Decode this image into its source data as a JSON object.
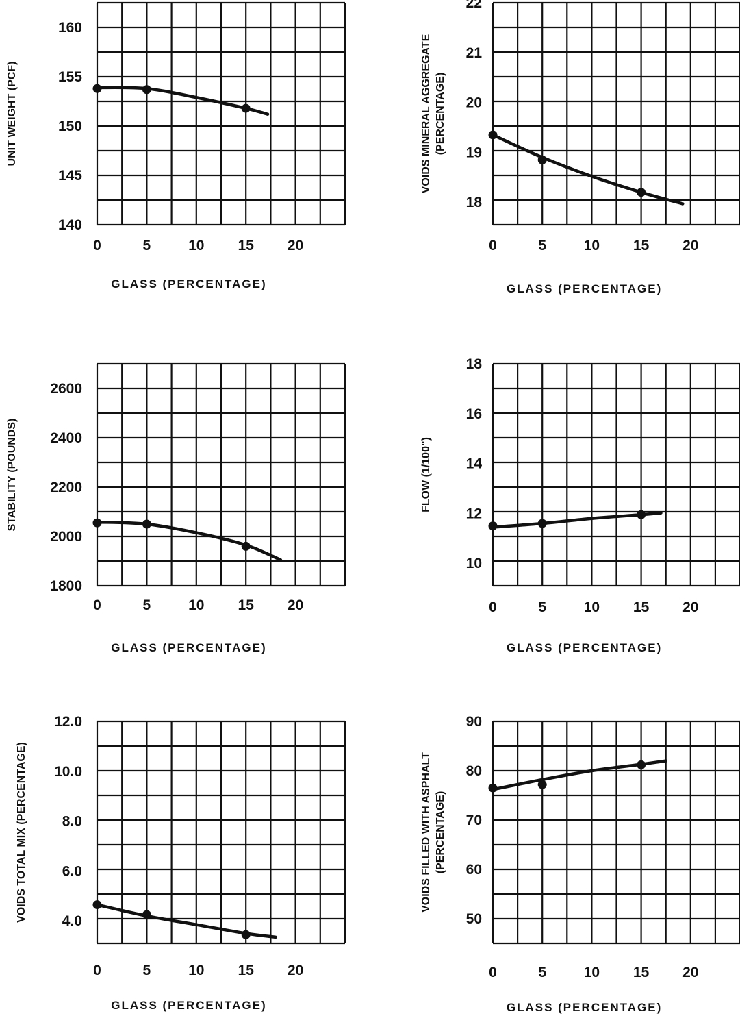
{
  "chart_data": [
    {
      "type": "line",
      "id": "unit-weight",
      "title": "",
      "xlabel": "GLASS (PERCENTAGE)",
      "ylabel": [
        "UNIT WEIGHT (PCF)"
      ],
      "xlim": [
        0,
        25
      ],
      "ylim": [
        140,
        162.5
      ],
      "x_ticks": [
        "0",
        "5",
        "10",
        "15",
        "20"
      ],
      "y_ticks": [
        "140",
        "145",
        "150",
        "155",
        "160"
      ],
      "grid": true,
      "series": [
        {
          "points": [
            {
              "x": 0,
              "y": 153.8
            },
            {
              "x": 5,
              "y": 153.7
            },
            {
              "x": 15,
              "y": 151.8
            }
          ],
          "curve": [
            {
              "x": 0,
              "y": 153.9
            },
            {
              "x": 5,
              "y": 153.8
            },
            {
              "x": 10,
              "y": 152.9
            },
            {
              "x": 15,
              "y": 151.8
            },
            {
              "x": 17.2,
              "y": 151.2
            }
          ]
        }
      ]
    },
    {
      "type": "line",
      "id": "vma",
      "title": "",
      "xlabel": "GLASS (PERCENTAGE)",
      "ylabel": [
        "VOIDS MINERAL AGGREGATE",
        "(PERCENTAGE)"
      ],
      "xlim": [
        0,
        25
      ],
      "ylim": [
        17.55,
        22
      ],
      "x_ticks": [
        "0",
        "5",
        "10",
        "15",
        "20"
      ],
      "y_ticks": [
        "18",
        "19",
        "20",
        "21",
        "22"
      ],
      "grid": true,
      "series": [
        {
          "points": [
            {
              "x": 0,
              "y": 19.35
            },
            {
              "x": 5,
              "y": 18.85
            },
            {
              "x": 15,
              "y": 18.2
            }
          ],
          "curve": [
            {
              "x": 0,
              "y": 19.35
            },
            {
              "x": 5,
              "y": 18.9
            },
            {
              "x": 10,
              "y": 18.52
            },
            {
              "x": 15,
              "y": 18.2
            },
            {
              "x": 19.2,
              "y": 17.97
            }
          ]
        }
      ]
    },
    {
      "type": "line",
      "id": "stability",
      "title": "",
      "xlabel": "GLASS (PERCENTAGE)",
      "ylabel": [
        "STABILITY (POUNDS)"
      ],
      "xlim": [
        0,
        25
      ],
      "ylim": [
        1800,
        2700
      ],
      "x_ticks": [
        "0",
        "5",
        "10",
        "15",
        "20"
      ],
      "y_ticks": [
        "1800",
        "2000",
        "2200",
        "2400",
        "2600"
      ],
      "grid": true,
      "series": [
        {
          "points": [
            {
              "x": 0,
              "y": 2055
            },
            {
              "x": 5,
              "y": 2050
            },
            {
              "x": 15,
              "y": 1960
            }
          ],
          "curve": [
            {
              "x": 0,
              "y": 2058
            },
            {
              "x": 5,
              "y": 2050
            },
            {
              "x": 10,
              "y": 2015
            },
            {
              "x": 15,
              "y": 1965
            },
            {
              "x": 18.5,
              "y": 1905
            }
          ]
        }
      ]
    },
    {
      "type": "line",
      "id": "flow",
      "title": "",
      "xlabel": "GLASS (PERCENTAGE)",
      "ylabel": [
        "FLOW (1/100\")"
      ],
      "xlim": [
        0,
        25
      ],
      "ylim": [
        9.1,
        18
      ],
      "x_ticks": [
        "0",
        "5",
        "10",
        "15",
        "20"
      ],
      "y_ticks": [
        "10",
        "12",
        "14",
        "16",
        "18"
      ],
      "grid": true,
      "series": [
        {
          "points": [
            {
              "x": 0,
              "y": 11.5
            },
            {
              "x": 5,
              "y": 11.6
            },
            {
              "x": 15,
              "y": 11.95
            }
          ],
          "curve": [
            {
              "x": 0,
              "y": 11.45
            },
            {
              "x": 5,
              "y": 11.6
            },
            {
              "x": 10,
              "y": 11.8
            },
            {
              "x": 15,
              "y": 11.95
            },
            {
              "x": 17,
              "y": 12.02
            }
          ]
        }
      ]
    },
    {
      "type": "line",
      "id": "vtm",
      "title": "",
      "xlabel": "GLASS (PERCENTAGE)",
      "ylabel": [
        "VOIDS TOTAL MIX (PERCENTAGE)"
      ],
      "xlim": [
        0,
        25
      ],
      "ylim": [
        3.1,
        12
      ],
      "x_ticks": [
        "0",
        "5",
        "10",
        "15",
        "20"
      ],
      "y_ticks": [
        "4.0",
        "6.0",
        "8.0",
        "10.0",
        "12.0"
      ],
      "grid": true,
      "series": [
        {
          "points": [
            {
              "x": 0,
              "y": 4.65
            },
            {
              "x": 5,
              "y": 4.25
            },
            {
              "x": 15,
              "y": 3.45
            }
          ],
          "curve": [
            {
              "x": 0,
              "y": 4.65
            },
            {
              "x": 5,
              "y": 4.2
            },
            {
              "x": 10,
              "y": 3.85
            },
            {
              "x": 15,
              "y": 3.5
            },
            {
              "x": 18,
              "y": 3.35
            }
          ]
        }
      ]
    },
    {
      "type": "line",
      "id": "vfa",
      "title": "",
      "xlabel": "GLASS (PERCENTAGE)",
      "ylabel": [
        "VOIDS FILLED WITH ASPHALT",
        "(PERCENTAGE)"
      ],
      "xlim": [
        0,
        25
      ],
      "ylim": [
        45,
        90
      ],
      "x_ticks": [
        "0",
        "5",
        "10",
        "15",
        "20"
      ],
      "y_ticks": [
        "50",
        "60",
        "70",
        "80",
        "90"
      ],
      "grid": true,
      "series": [
        {
          "points": [
            {
              "x": 0,
              "y": 76.5
            },
            {
              "x": 5,
              "y": 77.2
            },
            {
              "x": 15,
              "y": 81.2
            }
          ],
          "curve": [
            {
              "x": 0,
              "y": 76.2
            },
            {
              "x": 5,
              "y": 78.2
            },
            {
              "x": 10,
              "y": 80
            },
            {
              "x": 15,
              "y": 81.3
            },
            {
              "x": 17.5,
              "y": 82
            }
          ]
        }
      ]
    }
  ]
}
